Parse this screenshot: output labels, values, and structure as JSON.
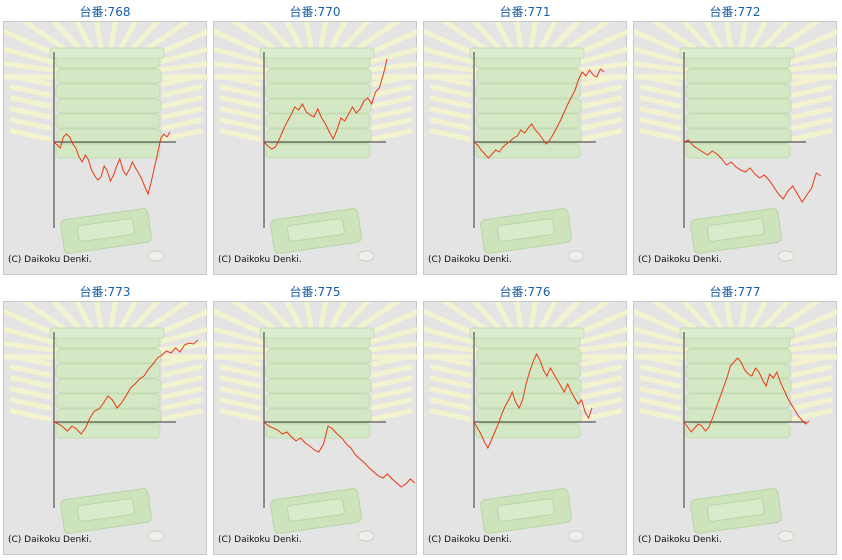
{
  "copyright": "(C) Daikoku Denki.",
  "line_color": "#e83a10",
  "title_color": "#1a5fa0",
  "chart_data": [
    {
      "type": "line",
      "title": "台番:768",
      "y": [
        0,
        -3,
        -6,
        5,
        8,
        5,
        -2,
        -6,
        -15,
        -20,
        -13,
        -18,
        -28,
        -34,
        -38,
        -35,
        -24,
        -29,
        -39,
        -33,
        -24,
        -17,
        -28,
        -33,
        -28,
        -20,
        -26,
        -31,
        -37,
        -45,
        -52,
        -40,
        -26,
        -12,
        3,
        8,
        5,
        10
      ]
    },
    {
      "type": "line",
      "title": "台番:770",
      "y": [
        0,
        -4,
        -7,
        -5,
        3,
        12,
        20,
        27,
        35,
        32,
        38,
        30,
        27,
        25,
        33,
        24,
        18,
        10,
        3,
        12,
        24,
        21,
        28,
        35,
        29,
        33,
        41,
        44,
        38,
        50,
        54,
        67,
        83
      ]
    },
    {
      "type": "line",
      "title": "台番:771",
      "y": [
        0,
        -3,
        -8,
        -12,
        -16,
        -12,
        -8,
        -10,
        -5,
        -2,
        1,
        4,
        6,
        12,
        9,
        14,
        18,
        12,
        8,
        3,
        -2,
        2,
        8,
        15,
        22,
        30,
        38,
        45,
        52,
        63,
        70,
        66,
        72,
        67,
        65,
        73,
        70
      ]
    },
    {
      "type": "line",
      "title": "台番:772",
      "y": [
        0,
        2,
        -4,
        -7,
        -10,
        -13,
        -9,
        -12,
        -17,
        -23,
        -20,
        -25,
        -28,
        -30,
        -26,
        -32,
        -36,
        -33,
        -38,
        -45,
        -52,
        -57,
        -49,
        -44,
        -52,
        -60,
        -53,
        -46,
        -31,
        -34
      ]
    },
    {
      "type": "line",
      "title": "台番:773",
      "y": [
        0,
        -2,
        -5,
        -9,
        -4,
        -7,
        -12,
        -6,
        4,
        11,
        13,
        19,
        26,
        22,
        14,
        19,
        26,
        34,
        38,
        43,
        46,
        53,
        58,
        64,
        67,
        71,
        69,
        74,
        70,
        77,
        79,
        78,
        82
      ]
    },
    {
      "type": "line",
      "title": "台番:775",
      "y": [
        0,
        -4,
        -6,
        -8,
        -12,
        -10,
        -15,
        -19,
        -16,
        -21,
        -24,
        -28,
        -30,
        -22,
        -4,
        -7,
        -12,
        -16,
        -22,
        -26,
        -33,
        -37,
        -41,
        -46,
        -50,
        -54,
        -56,
        -52,
        -57,
        -61,
        -65,
        -62,
        -57,
        -61
      ]
    },
    {
      "type": "line",
      "title": "台番:776",
      "y": [
        0,
        -6,
        -12,
        -20,
        -26,
        -18,
        -10,
        -2,
        8,
        16,
        22,
        30,
        20,
        14,
        22,
        38,
        50,
        60,
        68,
        62,
        52,
        46,
        54,
        48,
        42,
        36,
        30,
        38,
        30,
        24,
        18,
        22,
        10,
        4,
        14
      ]
    },
    {
      "type": "line",
      "title": "台番:777",
      "y": [
        0,
        -5,
        -10,
        -6,
        -2,
        -4,
        -9,
        -5,
        4,
        14,
        24,
        34,
        44,
        56,
        60,
        64,
        60,
        52,
        48,
        46,
        54,
        50,
        42,
        36,
        48,
        44,
        50,
        40,
        32,
        24,
        18,
        12,
        6,
        2,
        -2,
        1
      ]
    }
  ]
}
